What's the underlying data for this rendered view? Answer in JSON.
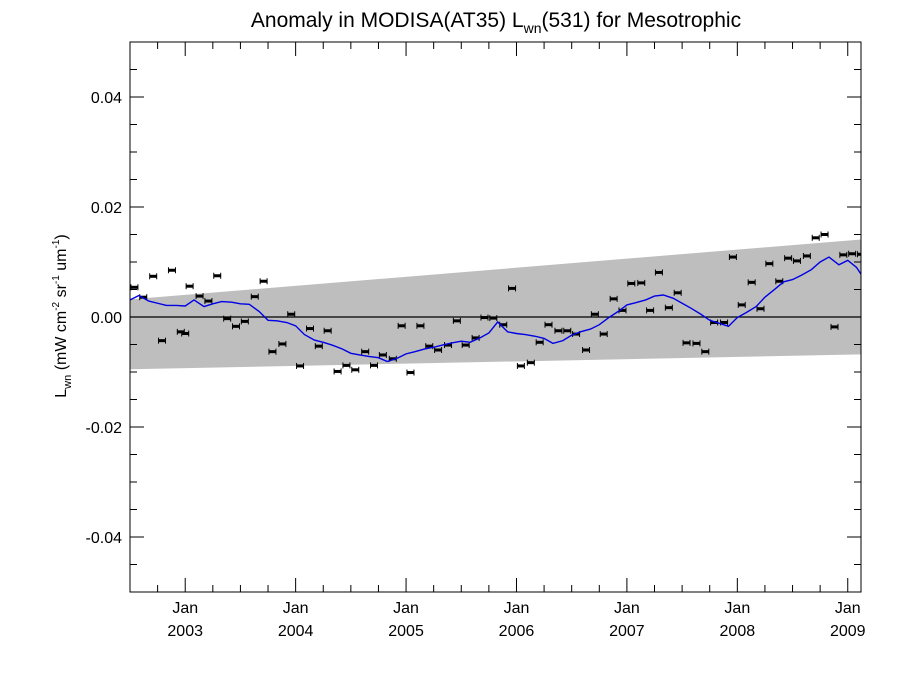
{
  "chart_data": {
    "type": "scatter",
    "title": {
      "main": "Anomaly in MODISA(AT35) L",
      "sub": "wn",
      "rest": "(531) for Mesotrophic"
    },
    "ylabel": {
      "symbol": "L",
      "symbol_sub": "wn",
      "unit_open": " (mW cm",
      "exp1": "-2",
      "unit_mid1": " sr",
      "exp2": "-1",
      "unit_mid2": " um",
      "exp3": "-1",
      "unit_close": ")"
    },
    "xlim": [
      2002.5,
      2009.12
    ],
    "ylim": [
      -0.05,
      0.05
    ],
    "y_ticks": [
      {
        "value": 0.04,
        "label": "0.04"
      },
      {
        "value": 0.02,
        "label": "0.02"
      },
      {
        "value": 0.0,
        "label": "0.00"
      },
      {
        "value": -0.02,
        "label": "-0.02"
      },
      {
        "value": -0.04,
        "label": "-0.04"
      }
    ],
    "x_ticks": [
      {
        "value": 2003.0,
        "month": "Jan",
        "year": "2003"
      },
      {
        "value": 2004.0,
        "month": "Jan",
        "year": "2004"
      },
      {
        "value": 2005.0,
        "month": "Jan",
        "year": "2005"
      },
      {
        "value": 2006.0,
        "month": "Jan",
        "year": "2006"
      },
      {
        "value": 2007.0,
        "month": "Jan",
        "year": "2007"
      },
      {
        "value": 2008.0,
        "month": "Jan",
        "year": "2008"
      },
      {
        "value": 2009.0,
        "month": "Jan",
        "year": "2009"
      }
    ],
    "band": {
      "color": "#bebebe",
      "upper": [
        [
          2002.5,
          0.0032
        ],
        [
          2009.12,
          0.0141
        ]
      ],
      "lower": [
        [
          2002.5,
          -0.0095
        ],
        [
          2009.12,
          -0.0068
        ]
      ]
    },
    "zero_line": 0.0,
    "points": {
      "color": "#000000",
      "x": [
        2002.54,
        2002.62,
        2002.71,
        2002.79,
        2002.88,
        2002.96,
        2003.0,
        2003.04,
        2003.13,
        2003.21,
        2003.29,
        2003.38,
        2003.46,
        2003.54,
        2003.63,
        2003.71,
        2003.79,
        2003.88,
        2003.96,
        2004.04,
        2004.13,
        2004.21,
        2004.29,
        2004.38,
        2004.46,
        2004.54,
        2004.63,
        2004.71,
        2004.79,
        2004.88,
        2004.96,
        2005.04,
        2005.13,
        2005.21,
        2005.29,
        2005.38,
        2005.46,
        2005.54,
        2005.63,
        2005.71,
        2005.79,
        2005.88,
        2005.96,
        2006.04,
        2006.13,
        2006.21,
        2006.29,
        2006.38,
        2006.46,
        2006.54,
        2006.63,
        2006.71,
        2006.79,
        2006.88,
        2006.96,
        2007.04,
        2007.13,
        2007.21,
        2007.29,
        2007.38,
        2007.46,
        2007.54,
        2007.63,
        2007.71,
        2007.79,
        2007.88,
        2007.96,
        2008.04,
        2008.13,
        2008.21,
        2008.29,
        2008.38,
        2008.46,
        2008.54,
        2008.63,
        2008.71,
        2008.79,
        2008.88,
        2008.96,
        2009.04,
        2009.12
      ],
      "y": [
        0.0054,
        0.0036,
        0.0074,
        -0.0043,
        0.0085,
        -0.0027,
        -0.003,
        0.0056,
        0.0038,
        0.0029,
        0.0075,
        -0.0003,
        -0.0017,
        -0.0008,
        0.0037,
        0.0065,
        -0.0063,
        -0.0049,
        0.0005,
        -0.0089,
        -0.0021,
        -0.0053,
        -0.0025,
        -0.0099,
        -0.0088,
        -0.0096,
        -0.0063,
        -0.0088,
        -0.0069,
        -0.0076,
        -0.0016,
        -0.0101,
        -0.0016,
        -0.0053,
        -0.006,
        -0.0051,
        -0.0007,
        -0.0051,
        -0.0038,
        -0.0001,
        -0.0002,
        -0.0014,
        0.0052,
        -0.0089,
        -0.0083,
        -0.0046,
        -0.0014,
        -0.0025,
        -0.0025,
        -0.0031,
        -0.006,
        0.0005,
        -0.0031,
        0.0033,
        0.0012,
        0.0061,
        0.0062,
        0.0012,
        0.0081,
        0.0017,
        0.0044,
        -0.0047,
        -0.0048,
        -0.0063,
        -0.001,
        -0.001,
        0.0109,
        0.0022,
        0.0063,
        0.0015,
        0.0097,
        0.0065,
        0.0107,
        0.0102,
        0.0111,
        0.0144,
        0.015,
        -0.0018,
        0.0113,
        0.0115,
        0.0114
      ]
    },
    "running_mean": {
      "color": "#0000e6",
      "x": [
        2002.5,
        2002.58,
        2002.67,
        2002.75,
        2002.83,
        2002.92,
        2003.0,
        2003.08,
        2003.17,
        2003.25,
        2003.33,
        2003.42,
        2003.5,
        2003.58,
        2003.67,
        2003.75,
        2003.83,
        2003.92,
        2004.0,
        2004.08,
        2004.17,
        2004.25,
        2004.33,
        2004.42,
        2004.5,
        2004.58,
        2004.67,
        2004.75,
        2004.83,
        2004.92,
        2005.0,
        2005.08,
        2005.17,
        2005.25,
        2005.33,
        2005.42,
        2005.5,
        2005.58,
        2005.67,
        2005.75,
        2005.83,
        2005.92,
        2006.0,
        2006.08,
        2006.17,
        2006.25,
        2006.33,
        2006.42,
        2006.5,
        2006.58,
        2006.67,
        2006.75,
        2006.83,
        2006.92,
        2007.0,
        2007.08,
        2007.17,
        2007.25,
        2007.33,
        2007.42,
        2007.5,
        2007.58,
        2007.67,
        2007.75,
        2007.83,
        2007.92,
        2008.0,
        2008.08,
        2008.17,
        2008.25,
        2008.33,
        2008.42,
        2008.5,
        2008.58,
        2008.67,
        2008.75,
        2008.83,
        2008.92,
        2009.0,
        2009.08,
        2009.12
      ],
      "y": [
        0.0031,
        0.0039,
        0.0029,
        0.0025,
        0.0021,
        0.0021,
        0.002,
        0.0031,
        0.0019,
        0.0024,
        0.0028,
        0.0027,
        0.0024,
        0.0023,
        0.001,
        -0.0006,
        -0.0007,
        -0.001,
        -0.0016,
        -0.0032,
        -0.0042,
        -0.0046,
        -0.0051,
        -0.0058,
        -0.0066,
        -0.0069,
        -0.0072,
        -0.0074,
        -0.0081,
        -0.0075,
        -0.0067,
        -0.0063,
        -0.0058,
        -0.0055,
        -0.0051,
        -0.0047,
        -0.0044,
        -0.0046,
        -0.0038,
        -0.0029,
        -0.0009,
        -0.0027,
        -0.003,
        -0.0032,
        -0.0035,
        -0.0039,
        -0.0048,
        -0.0043,
        -0.0033,
        -0.0027,
        -0.0022,
        -0.0014,
        -0.0002,
        0.001,
        0.0022,
        0.0026,
        0.0031,
        0.0038,
        0.004,
        0.0034,
        0.0025,
        0.0016,
        0.0005,
        -0.0006,
        -0.0011,
        -0.0017,
        -0.0001,
        0.0008,
        0.0019,
        0.0036,
        0.0049,
        0.0064,
        0.0068,
        0.0076,
        0.0086,
        0.01,
        0.0109,
        0.0095,
        0.0103,
        0.009,
        0.0078
      ]
    }
  }
}
